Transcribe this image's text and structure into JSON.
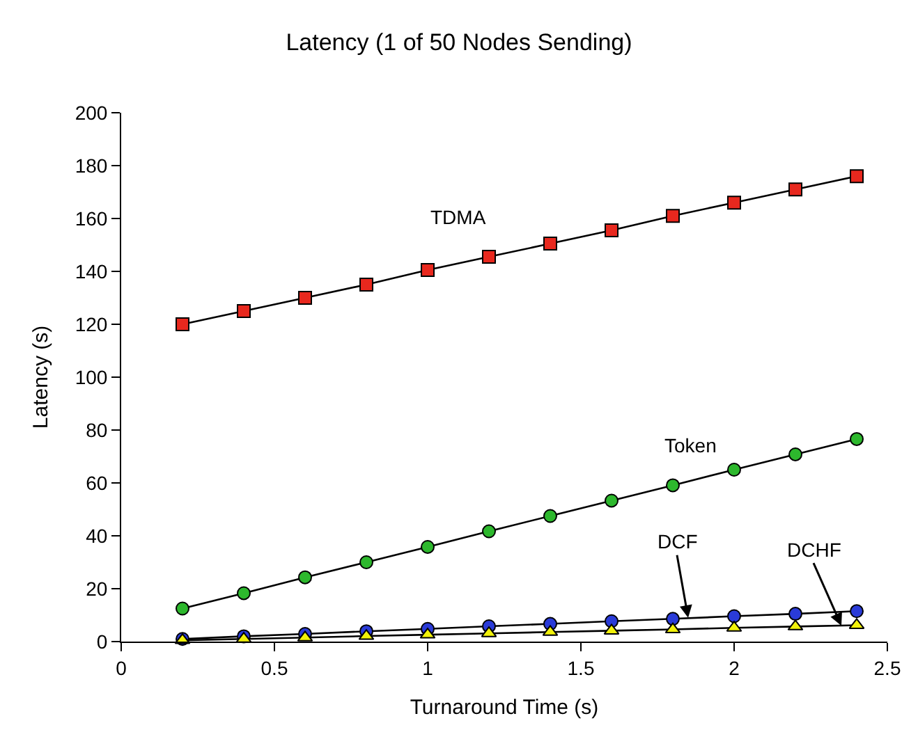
{
  "chart_data": {
    "type": "line",
    "title": "Latency (1 of 50 Nodes Sending)",
    "xlabel": "Turnaround Time (s)",
    "ylabel": "Latency (s)",
    "x": [
      0.2,
      0.4,
      0.6,
      0.8,
      1.0,
      1.2,
      1.4,
      1.6,
      1.8,
      2.0,
      2.2,
      2.4
    ],
    "series": [
      {
        "color": "#e8281e",
        "marker": "square",
        "values": [
          120,
          125,
          130,
          135,
          140.5,
          145.5,
          150.5,
          155.5,
          161,
          166,
          171,
          176
        ]
      },
      {
        "color": "#2db82d",
        "marker": "circle",
        "values": [
          12.5,
          18.3,
          24.3,
          30,
          35.8,
          41.7,
          47.5,
          53.3,
          59.1,
          65,
          70.8,
          76.6
        ]
      },
      {
        "color": "#2a3bd8",
        "marker": "circle",
        "values": [
          1.0,
          2.0,
          2.9,
          3.9,
          4.8,
          5.8,
          6.7,
          7.7,
          8.6,
          9.6,
          10.5,
          11.5
        ]
      },
      {
        "color": "#f2f20a",
        "marker": "triangle",
        "values": [
          0.5,
          1.0,
          1.5,
          2.1,
          2.6,
          3.1,
          3.6,
          4.1,
          4.6,
          5.2,
          5.7,
          6.2
        ]
      }
    ],
    "xlim": [
      0,
      2.5
    ],
    "xticks": [
      0,
      0.5,
      1,
      1.5,
      2,
      2.5
    ],
    "ylim": [
      0,
      200
    ],
    "yticks": [
      0,
      20,
      40,
      60,
      80,
      100,
      120,
      140,
      160,
      180,
      200
    ],
    "line_style": "solid",
    "annotations": [
      "TDMA",
      "Token",
      {
        "text": "DCF",
        "x": 1.85,
        "y": 9
      },
      {
        "text": "DCHF",
        "x": 2.35,
        "y": 6
      }
    ]
  }
}
